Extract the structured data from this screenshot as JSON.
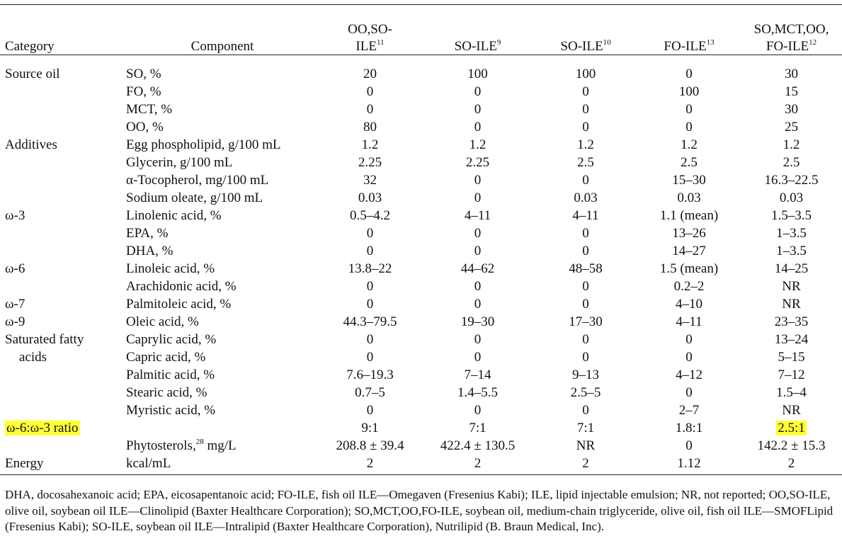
{
  "columns": {
    "category": "Category",
    "component": "Component",
    "products": [
      {
        "name_line1": "OO,SO-",
        "name_line2": "ILE",
        "ref": "11"
      },
      {
        "name_line1": "",
        "name_line2": "SO-ILE",
        "ref": "9"
      },
      {
        "name_line1": "",
        "name_line2": "SO-ILE",
        "ref": "10"
      },
      {
        "name_line1": "",
        "name_line2": "FO-ILE",
        "ref": "13"
      },
      {
        "name_line1": "SO,MCT,OO,",
        "name_line2": "FO-ILE",
        "ref": "12"
      }
    ]
  },
  "rows": [
    {
      "category": "Source oil",
      "component": "SO, %",
      "values": [
        "20",
        "100",
        "100",
        "0",
        "30"
      ]
    },
    {
      "category": "",
      "component": "FO, %",
      "values": [
        "0",
        "0",
        "0",
        "100",
        "15"
      ]
    },
    {
      "category": "",
      "component": "MCT, %",
      "values": [
        "0",
        "0",
        "0",
        "0",
        "30"
      ]
    },
    {
      "category": "",
      "component": "OO, %",
      "values": [
        "80",
        "0",
        "0",
        "0",
        "25"
      ]
    },
    {
      "category": "Additives",
      "component": "Egg phospholipid, g/100 mL",
      "values": [
        "1.2",
        "1.2",
        "1.2",
        "1.2",
        "1.2"
      ]
    },
    {
      "category": "",
      "component": "Glycerin, g/100 mL",
      "values": [
        "2.25",
        "2.25",
        "2.5",
        "2.5",
        "2.5"
      ]
    },
    {
      "category": "",
      "component": "α-Tocopherol, mg/100 mL",
      "values": [
        "32",
        "0",
        "0",
        "15–30",
        "16.3–22.5"
      ]
    },
    {
      "category": "",
      "component": "Sodium oleate, g/100 mL",
      "values": [
        "0.03",
        "0",
        "0.03",
        "0.03",
        "0.03"
      ]
    },
    {
      "category": "ω-3",
      "component": "Linolenic acid, %",
      "values": [
        "0.5–4.2",
        "4–11",
        "4–11",
        "1.1 (mean)",
        "1.5–3.5"
      ]
    },
    {
      "category": "",
      "component": "EPA, %",
      "values": [
        "0",
        "0",
        "0",
        "13–26",
        "1–3.5"
      ]
    },
    {
      "category": "",
      "component": "DHA, %",
      "values": [
        "0",
        "0",
        "0",
        "14–27",
        "1–3.5"
      ]
    },
    {
      "category": "ω-6",
      "component": "Linoleic acid, %",
      "values": [
        "13.8–22",
        "44–62",
        "48–58",
        "1.5 (mean)",
        "14–25"
      ]
    },
    {
      "category": "",
      "component": "Arachidonic acid, %",
      "values": [
        "0",
        "0",
        "0",
        "0.2–2",
        "NR"
      ]
    },
    {
      "category": "ω-7",
      "component": "Palmitoleic acid, %",
      "values": [
        "0",
        "0",
        "0",
        "4–10",
        "NR"
      ]
    },
    {
      "category": "ω-9",
      "component": "Oleic acid, %",
      "values": [
        "44.3–79.5",
        "19–30",
        "17–30",
        "4–11",
        "23–35"
      ]
    },
    {
      "category": "Saturated fatty",
      "category_cont": "acids",
      "component": "Caprylic acid, %",
      "values": [
        "0",
        "0",
        "0",
        "0",
        "13–24"
      ]
    },
    {
      "category": "",
      "component": "Capric acid, %",
      "values": [
        "0",
        "0",
        "0",
        "0",
        "5–15"
      ]
    },
    {
      "category": "",
      "component": "Palmitic acid, %",
      "values": [
        "7.6–19.3",
        "7–14",
        "9–13",
        "4–12",
        "7–12"
      ]
    },
    {
      "category": "",
      "component": "Stearic acid, %",
      "values": [
        "0.7–5",
        "1.4–5.5",
        "2.5–5",
        "0",
        "1.5–4"
      ]
    },
    {
      "category": "",
      "component": "Myristic acid, %",
      "values": [
        "0",
        "0",
        "0",
        "2–7",
        "NR"
      ]
    },
    {
      "category": "ω-6:ω-3 ratio",
      "component": "",
      "values": [
        "9:1",
        "7:1",
        "7:1",
        "1.8:1",
        "2.5:1"
      ]
    },
    {
      "category": "",
      "component": "Phytosterols,",
      "component_ref": "28",
      "component_unit": " mg/L",
      "values": [
        "208.8 ± 39.4",
        "422.4 ± 130.5",
        "NR",
        "0",
        "142.2 ± 15.3"
      ]
    },
    {
      "category": "Energy",
      "component": "kcal/mL",
      "values": [
        "2",
        "2",
        "2",
        "1.12",
        "2"
      ]
    }
  ],
  "highlight_color": "#ffff33",
  "footnote": "DHA, docosahexanoic acid; EPA, eicosapentanoic acid; FO-ILE, fish oil ILE—Omegaven (Fresenius Kabi); ILE, lipid injectable emulsion; NR, not reported; OO,SO-ILE, olive oil, soybean oil ILE—Clinolipid (Baxter Healthcare Corporation); SO,MCT,OO,FO-ILE, soybean oil, medium-chain triglyceride, olive oil, fish oil ILE—SMOFLipid (Fresenius Kabi); SO-ILE, soybean oil ILE—Intralipid (Baxter Healthcare Corporation), Nutrilipid (B. Braun Medical, Inc)."
}
